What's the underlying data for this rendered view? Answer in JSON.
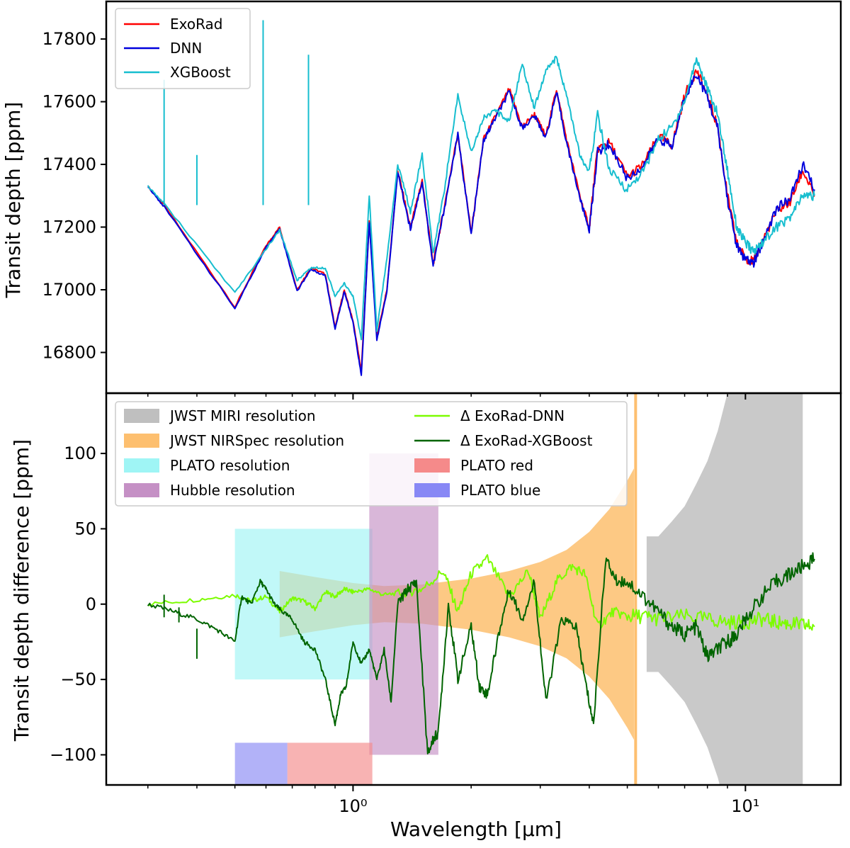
{
  "chart_data": [
    {
      "type": "line",
      "panel": "top",
      "ylabel": "Transit depth [ppm]",
      "xlabel": "",
      "xscale": "log",
      "xlim": [
        0.235,
        17.5
      ],
      "ylim": [
        16670,
        17920
      ],
      "yticks": [
        16800,
        17000,
        17200,
        17400,
        17600,
        17800
      ],
      "ytick_labels": [
        "16800",
        "17000",
        "17200",
        "17400",
        "17600",
        "17800"
      ],
      "legend": {
        "position": "top-left",
        "entries": [
          "ExoRad",
          "DNN",
          "XGBoost"
        ]
      },
      "series": [
        {
          "name": "ExoRad",
          "color": "#ff0000",
          "x": [
            0.3,
            0.33,
            0.5,
            0.6,
            0.65,
            0.72,
            0.78,
            0.85,
            0.9,
            0.95,
            1.0,
            1.05,
            1.1,
            1.15,
            1.22,
            1.3,
            1.4,
            1.5,
            1.6,
            1.7,
            1.85,
            2.0,
            2.15,
            2.3,
            2.5,
            2.7,
            2.9,
            3.1,
            3.3,
            3.5,
            3.8,
            4.0,
            4.2,
            4.5,
            5.0,
            5.5,
            6.0,
            6.5,
            7.0,
            7.5,
            8.0,
            8.5,
            9.0,
            9.5,
            10.0,
            10.5,
            11.0,
            12.0,
            13.0,
            14.0,
            15.0
          ],
          "values": [
            17330,
            17270,
            16945,
            17140,
            17200,
            17000,
            17070,
            17050,
            16880,
            17000,
            16900,
            16740,
            17220,
            16850,
            17000,
            17380,
            17200,
            17350,
            17080,
            17250,
            17500,
            17180,
            17480,
            17550,
            17640,
            17520,
            17560,
            17490,
            17640,
            17480,
            17290,
            17200,
            17450,
            17470,
            17360,
            17400,
            17490,
            17460,
            17620,
            17700,
            17620,
            17520,
            17300,
            17150,
            17100,
            17090,
            17150,
            17250,
            17280,
            17380,
            17300
          ]
        },
        {
          "name": "DNN",
          "color": "#0000dd",
          "x": [
            0.3,
            0.33,
            0.5,
            0.6,
            0.65,
            0.72,
            0.78,
            0.85,
            0.9,
            0.95,
            1.0,
            1.05,
            1.1,
            1.15,
            1.22,
            1.3,
            1.4,
            1.5,
            1.6,
            1.7,
            1.85,
            2.0,
            2.15,
            2.3,
            2.5,
            2.7,
            2.9,
            3.1,
            3.3,
            3.5,
            3.8,
            4.0,
            4.2,
            4.5,
            5.0,
            5.5,
            6.0,
            6.5,
            7.0,
            7.5,
            8.0,
            8.5,
            9.0,
            9.5,
            10.0,
            10.5,
            11.0,
            12.0,
            13.0,
            14.0,
            15.0
          ],
          "values": [
            17330,
            17265,
            16940,
            17135,
            17195,
            16995,
            17065,
            17045,
            16875,
            16995,
            16895,
            16725,
            17215,
            16840,
            16995,
            17375,
            17195,
            17345,
            17075,
            17245,
            17495,
            17175,
            17475,
            17545,
            17630,
            17515,
            17555,
            17485,
            17630,
            17470,
            17285,
            17190,
            17440,
            17465,
            17355,
            17395,
            17485,
            17455,
            17615,
            17690,
            17615,
            17515,
            17290,
            17140,
            17095,
            17085,
            17145,
            17260,
            17290,
            17400,
            17320
          ]
        },
        {
          "name": "XGBoost",
          "color": "#17becf",
          "x": [
            0.3,
            0.33,
            0.5,
            0.6,
            0.65,
            0.72,
            0.78,
            0.85,
            0.9,
            0.95,
            1.0,
            1.05,
            1.1,
            1.15,
            1.22,
            1.3,
            1.4,
            1.5,
            1.6,
            1.7,
            1.85,
            2.0,
            2.15,
            2.3,
            2.5,
            2.7,
            2.9,
            3.1,
            3.3,
            3.5,
            3.8,
            4.0,
            4.2,
            4.5,
            5.0,
            5.5,
            6.0,
            6.5,
            7.0,
            7.5,
            8.0,
            8.5,
            9.0,
            9.5,
            10.0,
            10.5,
            11.0,
            12.0,
            13.0,
            14.0,
            15.0
          ],
          "values": [
            17330,
            17275,
            16990,
            17130,
            17190,
            17030,
            17070,
            17070,
            16980,
            17020,
            16980,
            16840,
            17300,
            16870,
            17100,
            17400,
            17250,
            17430,
            17120,
            17300,
            17620,
            17440,
            17550,
            17570,
            17540,
            17720,
            17580,
            17700,
            17740,
            17620,
            17420,
            17380,
            17560,
            17380,
            17320,
            17380,
            17480,
            17520,
            17600,
            17740,
            17640,
            17560,
            17380,
            17200,
            17150,
            17120,
            17150,
            17200,
            17230,
            17300,
            17300
          ]
        }
      ]
    },
    {
      "type": "line",
      "panel": "bottom",
      "ylabel": "Transit depth difference [ppm]",
      "xlabel": "Wavelength [μm]",
      "xscale": "log",
      "xlim": [
        0.235,
        17.5
      ],
      "ylim": [
        -120,
        140
      ],
      "yticks": [
        -100,
        -50,
        0,
        50,
        100
      ],
      "ytick_labels": [
        "−100",
        "−50",
        "0",
        "50",
        "100"
      ],
      "xticks": [
        1,
        10
      ],
      "xtick_labels": [
        "10⁰",
        "10¹"
      ],
      "legend": {
        "position": "top-left",
        "entries": [
          "JWST MIRI resolution",
          "JWST NIRSpec resolution",
          "PLATO resolution",
          "Hubble resolution",
          "Δ ExoRad-DNN",
          "Δ ExoRad-XGBoost",
          "PLATO red",
          "PLATO blue"
        ]
      },
      "bands": [
        {
          "name": "JWST MIRI resolution",
          "color": "#bfbfbf",
          "x": [
            5.6,
            6.0,
            6.5,
            7.0,
            7.5,
            8.0,
            8.5,
            9.0,
            9.5,
            10.0,
            11.0,
            12.0,
            13.0,
            14.0
          ],
          "upper": [
            45,
            45,
            55,
            65,
            80,
            95,
            115,
            140,
            140,
            140,
            140,
            140,
            140,
            140
          ],
          "lower": [
            -45,
            -45,
            -55,
            -65,
            -80,
            -95,
            -115,
            -140,
            -140,
            -140,
            -140,
            -140,
            -140,
            -140
          ]
        },
        {
          "name": "JWST NIRSpec resolution",
          "color": "#fdbf6f",
          "x": [
            0.65,
            0.8,
            1.0,
            1.2,
            1.5,
            2.0,
            2.5,
            3.0,
            3.5,
            4.0,
            4.5,
            5.0,
            5.2
          ],
          "upper": [
            22,
            18,
            14,
            12,
            13,
            17,
            22,
            28,
            36,
            48,
            63,
            82,
            90
          ],
          "lower": [
            -22,
            -18,
            -14,
            -12,
            -13,
            -17,
            -22,
            -28,
            -36,
            -48,
            -63,
            -82,
            -90
          ]
        },
        {
          "name": "PLATO resolution",
          "color": "#9ff5f5",
          "xmin": 0.5,
          "xmax": 1.12,
          "ymin": -50,
          "ymax": 50
        },
        {
          "name": "Hubble resolution",
          "color": "#c590c5",
          "xmin": 1.1,
          "xmax": 1.65,
          "ymin": -100,
          "ymax": 100
        },
        {
          "name": "PLATO red",
          "color": "#f58a8a",
          "xmin": 0.68,
          "xmax": 1.12,
          "ymin": -120,
          "ymax": -92
        },
        {
          "name": "PLATO blue",
          "color": "#8888f5",
          "xmin": 0.5,
          "xmax": 0.68,
          "ymin": -120,
          "ymax": -92
        }
      ],
      "vline": {
        "x": 5.25,
        "color": "#fdbf6f"
      },
      "series": [
        {
          "name": "Δ ExoRad-DNN",
          "color": "#7cfc00",
          "x": [
            0.3,
            0.4,
            0.5,
            0.55,
            0.6,
            0.65,
            0.7,
            0.75,
            0.8,
            0.85,
            0.9,
            0.95,
            1.0,
            1.1,
            1.2,
            1.35,
            1.5,
            1.7,
            1.85,
            2.0,
            2.2,
            2.5,
            2.8,
            3.0,
            3.3,
            3.6,
            3.9,
            4.2,
            4.6,
            5.0,
            5.5,
            6.0,
            7.0,
            8.0,
            9.0,
            10.0,
            11.0,
            12.0,
            13.0,
            14.0,
            15.0
          ],
          "values": [
            0,
            3,
            6,
            2,
            5,
            -5,
            4,
            2,
            -3,
            8,
            5,
            10,
            8,
            10,
            6,
            8,
            10,
            22,
            -5,
            20,
            30,
            5,
            22,
            -10,
            15,
            25,
            20,
            -15,
            -5,
            -8,
            -8,
            -10,
            -8,
            -10,
            -12,
            -12,
            -10,
            -12,
            -13,
            -14,
            -15
          ]
        },
        {
          "name": "Δ ExoRad-XGBoost",
          "color": "#006400",
          "x": [
            0.3,
            0.35,
            0.4,
            0.45,
            0.5,
            0.52,
            0.55,
            0.58,
            0.6,
            0.63,
            0.66,
            0.7,
            0.75,
            0.8,
            0.85,
            0.9,
            0.93,
            0.96,
            1.0,
            1.05,
            1.1,
            1.15,
            1.2,
            1.25,
            1.3,
            1.38,
            1.45,
            1.55,
            1.6,
            1.65,
            1.75,
            1.85,
            2.0,
            2.1,
            2.2,
            2.35,
            2.5,
            2.7,
            2.9,
            3.1,
            3.4,
            3.7,
            3.9,
            4.1,
            4.4,
            4.7,
            5.0,
            5.5,
            6.0,
            6.5,
            7.0,
            7.5,
            8.0,
            8.5,
            9.0,
            9.5,
            10.0,
            11.0,
            12.0,
            13.0,
            14.0,
            15.0
          ],
          "values": [
            0,
            -5,
            -10,
            -17,
            -25,
            5,
            0,
            15,
            10,
            0,
            -5,
            -10,
            -25,
            -30,
            -50,
            -80,
            -60,
            -55,
            -25,
            -40,
            -30,
            -50,
            -30,
            -65,
            0,
            10,
            15,
            -100,
            -90,
            -85,
            0,
            -50,
            -15,
            -55,
            -60,
            -20,
            10,
            -10,
            15,
            -65,
            -10,
            -15,
            -50,
            -80,
            30,
            15,
            15,
            5,
            -5,
            -15,
            -20,
            -15,
            -35,
            -30,
            -25,
            -20,
            -10,
            5,
            15,
            20,
            25,
            30
          ]
        }
      ]
    }
  ]
}
